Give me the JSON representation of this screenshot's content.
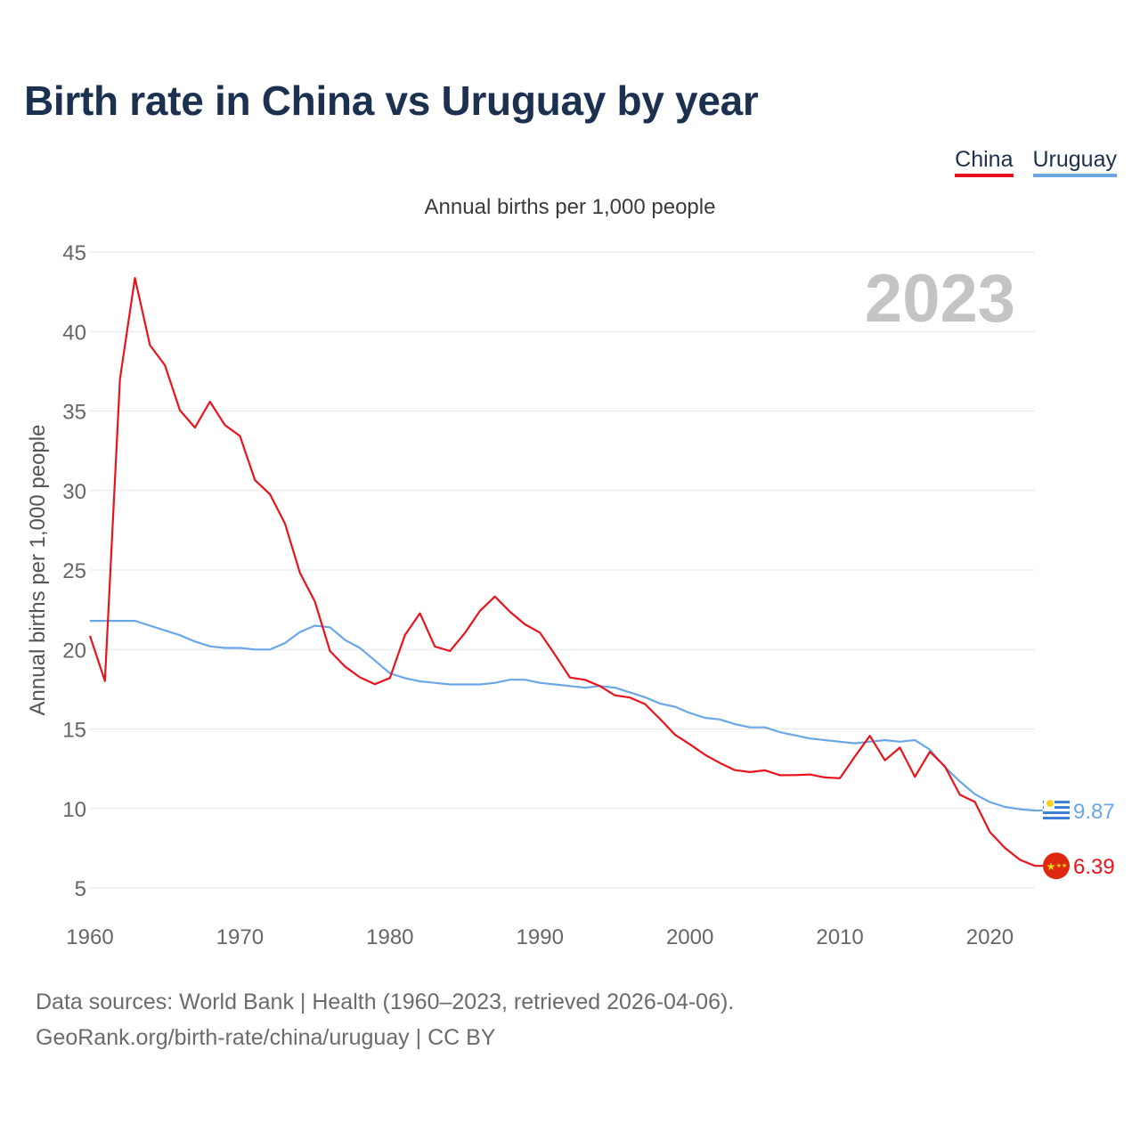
{
  "title": "Birth rate in China vs Uruguay by year",
  "legend": [
    {
      "label": "China",
      "color": "#e8141c"
    },
    {
      "label": "Uruguay",
      "color": "#6aa7e6"
    }
  ],
  "footer": {
    "sources": "Data sources: World Bank | Health (1960–2023, retrieved 2026-04-06).",
    "credit": "GeoRank.org/birth-rate/china/uruguay | CC BY"
  },
  "chart_data": {
    "type": "line",
    "title": "Annual births per 1,000 people",
    "ylabel": "Annual births per 1,000 people",
    "xlabel": "",
    "year_label": "2023",
    "xlim": [
      1960,
      2023
    ],
    "ylim": [
      3,
      45
    ],
    "x_ticks": [
      1960,
      1970,
      1980,
      1990,
      2000,
      2010,
      2020
    ],
    "y_ticks": [
      5,
      10,
      15,
      20,
      25,
      30,
      35,
      40,
      45
    ],
    "grid": true,
    "x": [
      1960,
      1961,
      1962,
      1963,
      1964,
      1965,
      1966,
      1967,
      1968,
      1969,
      1970,
      1971,
      1972,
      1973,
      1974,
      1975,
      1976,
      1977,
      1978,
      1979,
      1980,
      1981,
      1982,
      1983,
      1984,
      1985,
      1986,
      1987,
      1988,
      1989,
      1990,
      1991,
      1992,
      1993,
      1994,
      1995,
      1996,
      1997,
      1998,
      1999,
      2000,
      2001,
      2002,
      2003,
      2004,
      2005,
      2006,
      2007,
      2008,
      2009,
      2010,
      2011,
      2012,
      2013,
      2014,
      2015,
      2016,
      2017,
      2018,
      2019,
      2020,
      2021,
      2022,
      2023
    ],
    "series": [
      {
        "name": "China",
        "color": "#e8141c",
        "end_label": "6.39",
        "values": [
          20.86,
          18.02,
          37.01,
          43.37,
          39.14,
          37.88,
          35.05,
          33.96,
          35.59,
          34.11,
          33.43,
          30.65,
          29.77,
          27.93,
          24.82,
          23.01,
          19.91,
          18.93,
          18.25,
          17.82,
          18.21,
          20.91,
          22.28,
          20.19,
          19.9,
          21.04,
          22.43,
          23.33,
          22.37,
          21.58,
          21.06,
          19.68,
          18.24,
          18.09,
          17.7,
          17.12,
          16.98,
          16.57,
          15.64,
          14.64,
          14.03,
          13.38,
          12.86,
          12.41,
          12.29,
          12.4,
          12.09,
          12.1,
          12.14,
          11.95,
          11.9,
          13.27,
          14.57,
          13.03,
          13.83,
          11.99,
          13.57,
          12.64,
          10.86,
          10.41,
          8.52,
          7.52,
          6.77,
          6.39
        ]
      },
      {
        "name": "Uruguay",
        "color": "#6aa7e6",
        "end_label": "9.87",
        "values": [
          21.8,
          21.8,
          21.8,
          21.8,
          21.5,
          21.2,
          20.9,
          20.5,
          20.2,
          20.1,
          20.1,
          20.0,
          20.0,
          20.4,
          21.1,
          21.5,
          21.4,
          20.6,
          20.1,
          19.3,
          18.5,
          18.2,
          18.0,
          17.9,
          17.8,
          17.8,
          17.8,
          17.9,
          18.1,
          18.1,
          17.9,
          17.8,
          17.7,
          17.6,
          17.7,
          17.6,
          17.3,
          17.0,
          16.6,
          16.4,
          16.0,
          15.7,
          15.6,
          15.3,
          15.1,
          15.1,
          14.8,
          14.6,
          14.4,
          14.3,
          14.2,
          14.1,
          14.2,
          14.3,
          14.2,
          14.3,
          13.7,
          12.6,
          11.7,
          10.9,
          10.4,
          10.1,
          9.95,
          9.87
        ]
      }
    ]
  }
}
